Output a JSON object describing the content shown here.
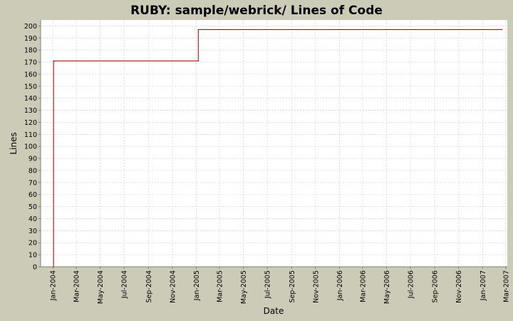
{
  "colors": {
    "background": "#cccbb8",
    "plot_background": "#ffffff",
    "grid": "#d9d9d9",
    "series": "#aa0000",
    "axis": "#808080"
  },
  "chart_data": {
    "type": "line",
    "title": "RUBY: sample/webrick/ Lines of Code",
    "xlabel": "Date",
    "ylabel": "Lines",
    "x_axis_type": "date",
    "xlim": [
      "2003-12-01",
      "2007-03-05"
    ],
    "ylim": [
      0,
      205
    ],
    "grid": true,
    "legend": "none",
    "step": true,
    "x_ticks": [
      "2004-01-01",
      "2004-03-01",
      "2004-05-01",
      "2004-07-01",
      "2004-09-01",
      "2004-11-01",
      "2005-01-01",
      "2005-03-01",
      "2005-05-01",
      "2005-07-01",
      "2005-09-01",
      "2005-11-01",
      "2006-01-01",
      "2006-03-01",
      "2006-05-01",
      "2006-07-01",
      "2006-09-01",
      "2006-11-01",
      "2007-01-01",
      "2007-03-01"
    ],
    "x_tick_labels": [
      "Jan-2004",
      "Mar-2004",
      "May-2004",
      "Jul-2004",
      "Sep-2004",
      "Nov-2004",
      "Jan-2005",
      "Mar-2005",
      "May-2005",
      "Jul-2005",
      "Sep-2005",
      "Nov-2005",
      "Jan-2006",
      "Mar-2006",
      "May-2006",
      "Jul-2006",
      "Sep-2006",
      "Nov-2006",
      "Jan-2007",
      "Mar-2007"
    ],
    "y_ticks": [
      0,
      10,
      20,
      30,
      40,
      50,
      60,
      70,
      80,
      90,
      100,
      110,
      120,
      130,
      140,
      150,
      160,
      170,
      180,
      190,
      200
    ],
    "series": [
      {
        "points": [
          {
            "x": "2004-01-03",
            "y": 0
          },
          {
            "x": "2004-01-03",
            "y": 171
          },
          {
            "x": "2005-01-06",
            "y": 171
          },
          {
            "x": "2005-01-06",
            "y": 197
          },
          {
            "x": "2007-02-20",
            "y": 197
          }
        ]
      }
    ]
  }
}
